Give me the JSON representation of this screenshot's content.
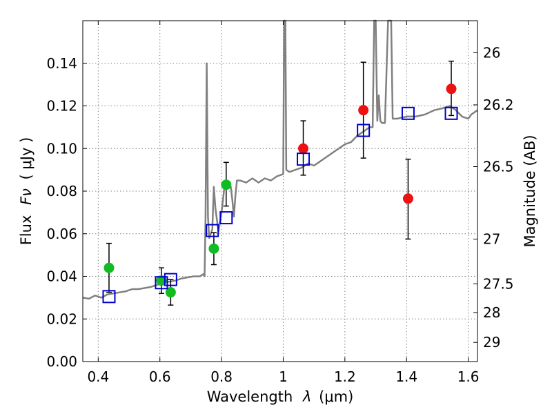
{
  "chart_data": {
    "type": "scatter",
    "title": "",
    "xlabel_text": "Wavelength",
    "xlabel_symbol": "λ",
    "xlabel_unit": "(μm)",
    "ylabel_text": "Flux",
    "ylabel_symbol": "Fν",
    "ylabel_unit": "( μJy )",
    "y2label": "Magnitude (AB)",
    "xlim": [
      0.35,
      1.63
    ],
    "ylim": [
      0.0,
      0.16
    ],
    "grid": true,
    "x_ticks": [
      0.4,
      0.6,
      0.8,
      1.0,
      1.2,
      1.4,
      1.6
    ],
    "x_tick_labels": [
      "0.4",
      "0.6",
      "0.8",
      "1",
      "1.2",
      "1.4",
      "1.6"
    ],
    "y_ticks": [
      0.0,
      0.02,
      0.04,
      0.06,
      0.08,
      0.1,
      0.12,
      0.14
    ],
    "y_tick_labels": [
      "0.00",
      "0.02",
      "0.04",
      "0.06",
      "0.08",
      "0.10",
      "0.12",
      "0.14"
    ],
    "y2_ticks": [
      {
        "label": "26",
        "flux": 0.145
      },
      {
        "label": "26.2",
        "flux": 0.1205
      },
      {
        "label": "26.5",
        "flux": 0.0915
      },
      {
        "label": "27",
        "flux": 0.0575
      },
      {
        "label": "27.5",
        "flux": 0.0365
      },
      {
        "label": "28",
        "flux": 0.023
      },
      {
        "label": "29",
        "flux": 0.009
      }
    ],
    "colors": {
      "template": "#808080",
      "green": "#11bb22",
      "red": "#ee1111",
      "model": "#0000cc",
      "errorbar": "#000000",
      "grid": "#7f7f7f"
    },
    "series": [
      {
        "marker": "circle",
        "color": "green",
        "points": [
          {
            "x": 0.435,
            "y": 0.044,
            "yerr_lo": 0.0115,
            "yerr_hi": 0.0115
          },
          {
            "x": 0.605,
            "y": 0.038,
            "yerr_lo": 0.006,
            "yerr_hi": 0.006
          },
          {
            "x": 0.635,
            "y": 0.0325,
            "yerr_lo": 0.006,
            "yerr_hi": 0.006
          },
          {
            "x": 0.775,
            "y": 0.053,
            "yerr_lo": 0.0075,
            "yerr_hi": 0.0075
          },
          {
            "x": 0.815,
            "y": 0.083,
            "yerr_lo": 0.01,
            "yerr_hi": 0.0105
          }
        ]
      },
      {
        "marker": "circle",
        "color": "red",
        "points": [
          {
            "x": 1.065,
            "y": 0.1,
            "yerr_lo": 0.0125,
            "yerr_hi": 0.013
          },
          {
            "x": 1.26,
            "y": 0.118,
            "yerr_lo": 0.0225,
            "yerr_hi": 0.0225
          },
          {
            "x": 1.405,
            "y": 0.0765,
            "yerr_lo": 0.019,
            "yerr_hi": 0.0185
          },
          {
            "x": 1.545,
            "y": 0.128,
            "yerr_lo": 0.0125,
            "yerr_hi": 0.013
          }
        ]
      },
      {
        "marker": "open-square",
        "color": "model",
        "points": [
          {
            "x": 0.435,
            "y": 0.0305
          },
          {
            "x": 0.605,
            "y": 0.037
          },
          {
            "x": 0.635,
            "y": 0.0385
          },
          {
            "x": 0.77,
            "y": 0.0615
          },
          {
            "x": 0.815,
            "y": 0.0675
          },
          {
            "x": 1.065,
            "y": 0.095
          },
          {
            "x": 1.26,
            "y": 0.1085
          },
          {
            "x": 1.405,
            "y": 0.1165
          },
          {
            "x": 1.545,
            "y": 0.1165
          }
        ]
      },
      {
        "marker": "line",
        "color": "template",
        "points": [
          [
            0.35,
            0.03
          ],
          [
            0.37,
            0.0295
          ],
          [
            0.39,
            0.031
          ],
          [
            0.41,
            0.03
          ],
          [
            0.43,
            0.0315
          ],
          [
            0.45,
            0.032
          ],
          [
            0.47,
            0.0325
          ],
          [
            0.49,
            0.033
          ],
          [
            0.51,
            0.034
          ],
          [
            0.53,
            0.034
          ],
          [
            0.55,
            0.0345
          ],
          [
            0.57,
            0.035
          ],
          [
            0.59,
            0.036
          ],
          [
            0.61,
            0.037
          ],
          [
            0.63,
            0.0375
          ],
          [
            0.65,
            0.038
          ],
          [
            0.67,
            0.039
          ],
          [
            0.69,
            0.0395
          ],
          [
            0.71,
            0.04
          ],
          [
            0.73,
            0.04
          ],
          [
            0.74,
            0.041
          ],
          [
            0.745,
            0.04
          ],
          [
            0.748,
            0.068
          ],
          [
            0.752,
            0.14
          ],
          [
            0.756,
            0.068
          ],
          [
            0.76,
            0.058
          ],
          [
            0.77,
            0.062
          ],
          [
            0.775,
            0.082
          ],
          [
            0.78,
            0.072
          ],
          [
            0.79,
            0.061
          ],
          [
            0.8,
            0.07
          ],
          [
            0.81,
            0.083
          ],
          [
            0.82,
            0.083
          ],
          [
            0.83,
            0.082
          ],
          [
            0.835,
            0.076
          ],
          [
            0.84,
            0.068
          ],
          [
            0.845,
            0.078
          ],
          [
            0.85,
            0.085
          ],
          [
            0.86,
            0.085
          ],
          [
            0.88,
            0.084
          ],
          [
            0.9,
            0.086
          ],
          [
            0.92,
            0.084
          ],
          [
            0.94,
            0.086
          ],
          [
            0.96,
            0.085
          ],
          [
            0.98,
            0.087
          ],
          [
            1.0,
            0.088
          ],
          [
            1.003,
            0.16
          ],
          [
            1.007,
            0.16
          ],
          [
            1.01,
            0.09
          ],
          [
            1.02,
            0.089
          ],
          [
            1.04,
            0.09
          ],
          [
            1.06,
            0.091
          ],
          [
            1.08,
            0.093
          ],
          [
            1.1,
            0.092
          ],
          [
            1.12,
            0.094
          ],
          [
            1.14,
            0.096
          ],
          [
            1.16,
            0.098
          ],
          [
            1.18,
            0.1
          ],
          [
            1.2,
            0.102
          ],
          [
            1.22,
            0.103
          ],
          [
            1.24,
            0.106
          ],
          [
            1.26,
            0.108
          ],
          [
            1.28,
            0.11
          ],
          [
            1.29,
            0.11
          ],
          [
            1.295,
            0.16
          ],
          [
            1.3,
            0.16
          ],
          [
            1.305,
            0.113
          ],
          [
            1.31,
            0.125
          ],
          [
            1.315,
            0.113
          ],
          [
            1.32,
            0.112
          ],
          [
            1.33,
            0.112
          ],
          [
            1.34,
            0.16
          ],
          [
            1.345,
            0.16
          ],
          [
            1.35,
            0.16
          ],
          [
            1.355,
            0.114
          ],
          [
            1.37,
            0.114
          ],
          [
            1.4,
            0.115
          ],
          [
            1.43,
            0.115
          ],
          [
            1.46,
            0.116
          ],
          [
            1.49,
            0.118
          ],
          [
            1.52,
            0.119
          ],
          [
            1.54,
            0.12
          ],
          [
            1.56,
            0.118
          ],
          [
            1.58,
            0.115
          ],
          [
            1.6,
            0.114
          ],
          [
            1.61,
            0.116
          ],
          [
            1.63,
            0.118
          ]
        ]
      }
    ]
  }
}
